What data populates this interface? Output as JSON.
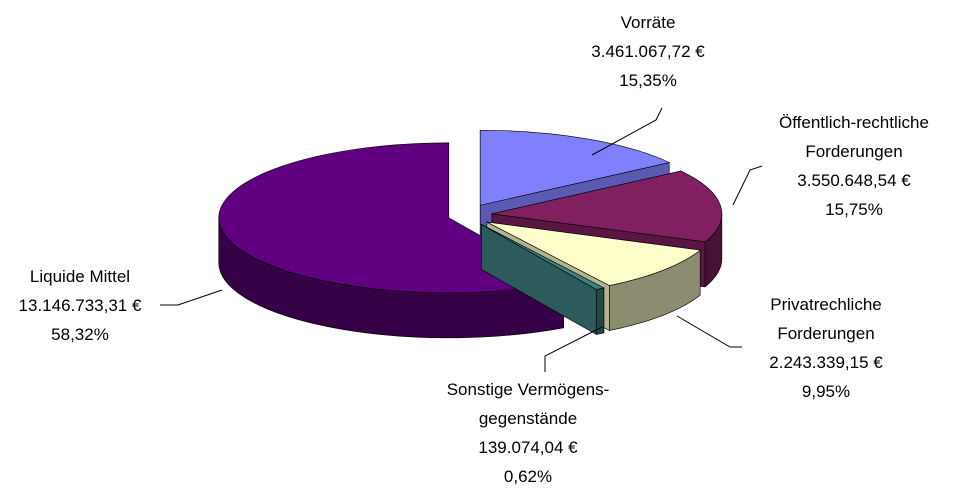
{
  "chart_data": {
    "type": "pie3d",
    "categories": [
      "Vorräte",
      "Öffentlich-rechtliche Forderungen",
      "Privatrechliche Forderungen",
      "Sonstige Vermögens-gegenstände",
      "Liquide Mittel"
    ],
    "values": [
      3461067.72,
      3550648.54,
      2243339.15,
      139074.04,
      13146733.31
    ],
    "value_labels": [
      "3.461.067,72 €",
      "3.550.648,54 €",
      "2.243.339,15 €",
      "139.074,04 €",
      "13.146.733,31 €"
    ],
    "percentages": [
      15.35,
      15.75,
      9.95,
      0.62,
      58.32
    ],
    "percentage_labels": [
      "15,35%",
      "15,75%",
      "9,95%",
      "0,62%",
      "58,32%"
    ],
    "colors": [
      "#8080ff",
      "#802060",
      "#ffffcc",
      "#408080",
      "#600080"
    ]
  }
}
